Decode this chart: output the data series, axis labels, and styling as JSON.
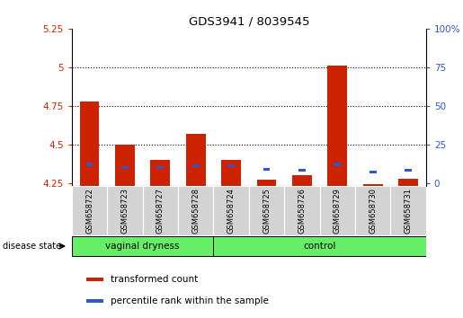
{
  "title": "GDS3941 / 8039545",
  "samples": [
    "GSM658722",
    "GSM658723",
    "GSM658727",
    "GSM658728",
    "GSM658724",
    "GSM658725",
    "GSM658726",
    "GSM658729",
    "GSM658730",
    "GSM658731"
  ],
  "red_values": [
    4.78,
    4.5,
    4.4,
    4.57,
    4.4,
    4.27,
    4.3,
    5.01,
    4.24,
    4.28
  ],
  "blue_values": [
    4.37,
    4.35,
    4.35,
    4.36,
    4.36,
    4.34,
    4.33,
    4.37,
    4.32,
    4.33
  ],
  "baseline": 4.23,
  "ylim_left": [
    4.23,
    5.25
  ],
  "yticks_left": [
    4.25,
    4.5,
    4.75,
    5.0,
    5.25
  ],
  "ytick_labels_left": [
    "4.25",
    "4.5",
    "4.75",
    "5",
    "5.25"
  ],
  "ylim_right": [
    -1.5625,
    100
  ],
  "yticks_right": [
    0,
    25,
    50,
    75,
    100
  ],
  "ytick_labels_right": [
    "0",
    "25",
    "50",
    "75",
    "100%"
  ],
  "red_color": "#cc2200",
  "blue_color": "#3355cc",
  "bg_label": "#d3d3d3",
  "bg_group": "#66ee66",
  "legend_red": "transformed count",
  "legend_blue": "percentile rank within the sample",
  "disease_state_label": "disease state"
}
